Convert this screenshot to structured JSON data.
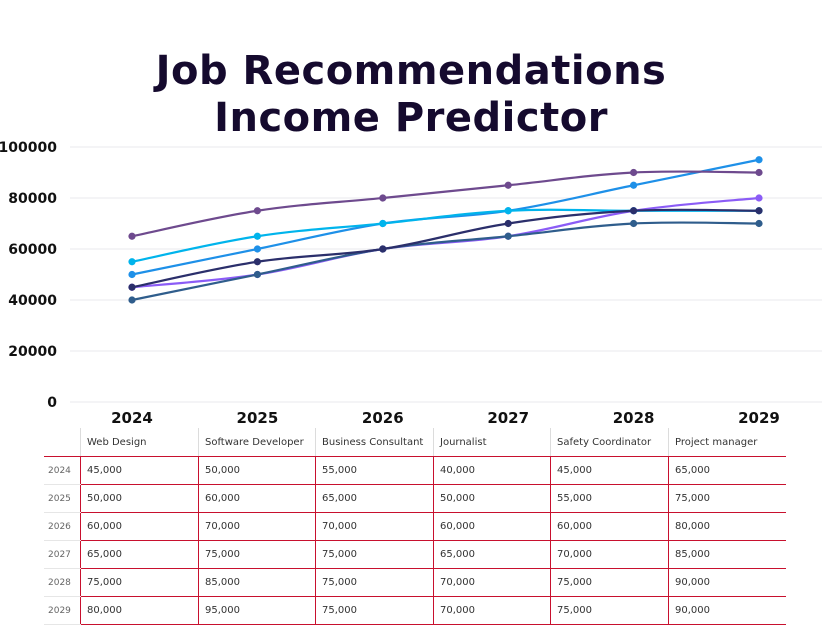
{
  "title": {
    "line1": "Job Recommendations",
    "line2": "Income Predictor"
  },
  "chart_data": {
    "type": "line",
    "x": [
      "2024",
      "2025",
      "2026",
      "2027",
      "2028",
      "2029"
    ],
    "ylim": [
      0,
      100000
    ],
    "yticks": [
      "0",
      "20000",
      "40000",
      "60000",
      "80000",
      "100000"
    ],
    "grid": true,
    "series": [
      {
        "name": "Web Design",
        "color": "#8b5cf6",
        "values": [
          45000,
          50000,
          60000,
          65000,
          75000,
          80000
        ]
      },
      {
        "name": "Software Developer",
        "color": "#1e90e8",
        "values": [
          50000,
          60000,
          70000,
          75000,
          85000,
          95000
        ]
      },
      {
        "name": "Business Consultant",
        "color": "#00b4ec",
        "values": [
          55000,
          65000,
          70000,
          75000,
          75000,
          75000
        ]
      },
      {
        "name": "Journalist",
        "color": "#2f5d8c",
        "values": [
          40000,
          50000,
          60000,
          65000,
          70000,
          70000
        ]
      },
      {
        "name": "Safety Coordinator",
        "color": "#2b2f6b",
        "values": [
          45000,
          55000,
          60000,
          70000,
          75000,
          75000
        ]
      },
      {
        "name": "Project manager",
        "color": "#6e4a8e",
        "values": [
          65000,
          75000,
          80000,
          85000,
          90000,
          90000
        ]
      }
    ]
  },
  "table": {
    "columns": [
      "Web Design",
      "Software Developer",
      "Business Consultant",
      "Journalist",
      "Safety Coordinator",
      "Project manager"
    ],
    "rows": [
      {
        "year": "2024",
        "values": [
          "45,000",
          "50,000",
          "55,000",
          "40,000",
          "45,000",
          "65,000"
        ]
      },
      {
        "year": "2025",
        "values": [
          "50,000",
          "60,000",
          "65,000",
          "50,000",
          "55,000",
          "75,000"
        ]
      },
      {
        "year": "2026",
        "values": [
          "60,000",
          "70,000",
          "70,000",
          "60,000",
          "60,000",
          "80,000"
        ]
      },
      {
        "year": "2027",
        "values": [
          "65,000",
          "75,000",
          "75,000",
          "65,000",
          "70,000",
          "85,000"
        ]
      },
      {
        "year": "2028",
        "values": [
          "75,000",
          "85,000",
          "75,000",
          "70,000",
          "75,000",
          "90,000"
        ]
      },
      {
        "year": "2029",
        "values": [
          "80,000",
          "95,000",
          "75,000",
          "70,000",
          "75,000",
          "90,000"
        ]
      }
    ]
  }
}
